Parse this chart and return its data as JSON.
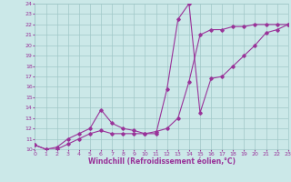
{
  "xlabel": "Windchill (Refroidissement éolien,°C)",
  "bg_color": "#cbe8e8",
  "grid_color": "#a0c8c8",
  "line_color": "#993399",
  "xmin": 0,
  "xmax": 23,
  "ymin": 10,
  "ymax": 24,
  "line1_x": [
    0,
    1,
    2,
    3,
    4,
    5,
    6,
    7,
    8,
    9,
    10,
    11,
    12,
    13,
    14,
    15,
    16,
    17,
    18,
    19,
    20,
    21,
    22,
    23
  ],
  "line1_y": [
    10.4,
    10.0,
    10.0,
    10.5,
    11.0,
    11.5,
    11.8,
    11.5,
    11.5,
    11.5,
    11.5,
    11.7,
    12.0,
    13.0,
    16.5,
    21.0,
    21.5,
    21.5,
    21.8,
    21.8,
    22.0,
    22.0,
    22.0,
    22.0
  ],
  "line2_x": [
    0,
    1,
    2,
    3,
    4,
    5,
    6,
    7,
    8,
    9,
    10,
    11,
    12,
    13,
    14,
    15,
    16,
    17,
    18,
    19,
    20,
    21,
    22,
    23
  ],
  "line2_y": [
    10.4,
    10.0,
    10.2,
    11.0,
    11.5,
    12.0,
    13.8,
    12.5,
    12.0,
    11.8,
    11.5,
    11.5,
    15.8,
    22.5,
    24.0,
    13.5,
    16.8,
    17.0,
    18.0,
    19.0,
    20.0,
    21.2,
    21.5,
    22.0
  ],
  "xtick_fontsize": 4.5,
  "ytick_fontsize": 4.5,
  "xlabel_fontsize": 5.5
}
